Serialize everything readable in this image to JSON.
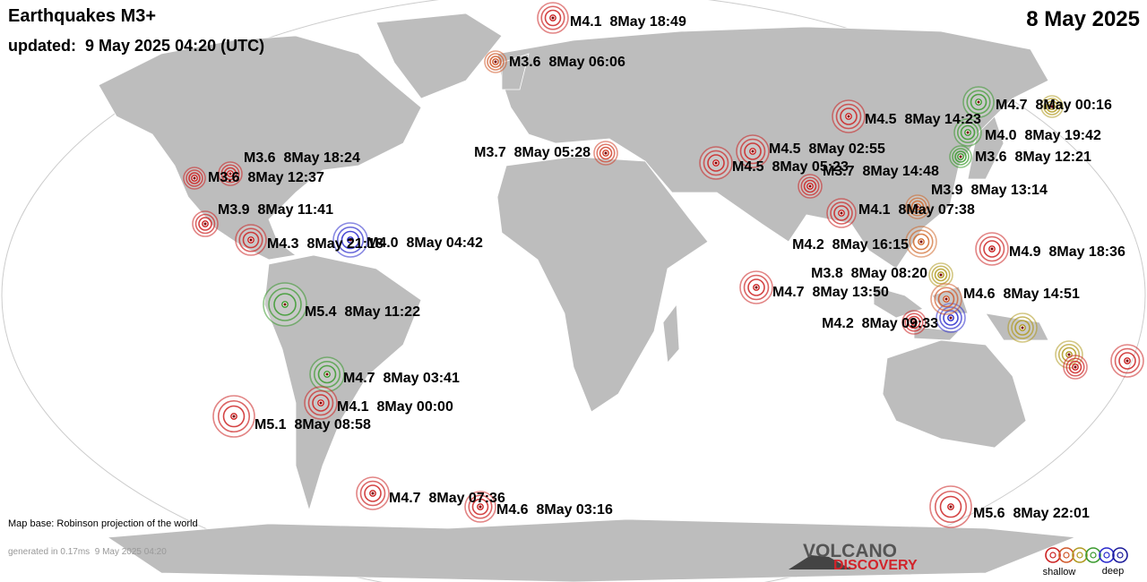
{
  "header": {
    "title": "Earthquakes M3+",
    "updated": "updated:  9 May 2025 04:20 (UTC)",
    "date": "8 May 2025"
  },
  "quakes": [
    {
      "label": "M4.1  8May 18:49",
      "color": "#cc2222"
    },
    {
      "label": "M3.6  8May 06:06",
      "color": "#d0582a"
    },
    {
      "label": "M4.7  8May 00:16",
      "color": "#3a9a2e"
    },
    {
      "label": "M4.5  8May 14:23",
      "color": "#cc2222"
    },
    {
      "label": "M4.0  8May 19:42",
      "color": "#3a9a2e"
    },
    {
      "label": "M4.5  8May 02:55",
      "color": "#cc2222"
    },
    {
      "label": "M3.7  8May 05:28",
      "color": "#d0402a"
    },
    {
      "label": "M3.6  8May 12:21",
      "color": "#3a9a2e"
    },
    {
      "label": "M4.5  8May 05:23",
      "color": "#cc2222"
    },
    {
      "label": "M3.7  8May 14:48",
      "color": "#cc2222"
    },
    {
      "label": "M3.6  8May 18:24",
      "color": "#cc2222"
    },
    {
      "label": "M3.6  8May 12:37",
      "color": "#cc2222"
    },
    {
      "label": "M3.9  8May 13:14",
      "color": "#d0682a"
    },
    {
      "label": "M4.1  8May 07:38",
      "color": "#cc2222"
    },
    {
      "label": "M3.9  8May 11:41",
      "color": "#cc2222"
    },
    {
      "label": "M4.3  8May 21:18",
      "color": "#cc2222"
    },
    {
      "label": "M4.0  8May 04:42",
      "color": "#2a2acc"
    },
    {
      "label": "M4.2  8May 16:15",
      "color": "#d0682a"
    },
    {
      "label": "M4.9  8May 18:36",
      "color": "#cc2222"
    },
    {
      "label": "M3.8  8May 08:20",
      "color": "#b09a20"
    },
    {
      "label": "M4.7  8May 13:50",
      "color": "#cc2222"
    },
    {
      "label": "M4.6  8May 14:51",
      "color": "#d0582a"
    },
    {
      "label": "M5.4  8May 11:22",
      "color": "#3a9a2e"
    },
    {
      "label": "M4.2  8May 09:33",
      "color": "#cc2222"
    },
    {
      "label": "M4.7  8May 03:41",
      "color": "#3a9a2e"
    },
    {
      "label": "M4.1  8May 00:00",
      "color": "#cc2222"
    },
    {
      "label": "M5.1  8May 08:58",
      "color": "#cc2222"
    },
    {
      "label": "M4.7  8May 07:36",
      "color": "#cc2222"
    },
    {
      "label": "M4.6  8May 03:16",
      "color": "#cc2222"
    },
    {
      "label": "M5.6  8May 22:01",
      "color": "#cc2222"
    }
  ],
  "map_base": "Map base: Robinson projection of the world",
  "generated": "generated in 0.17ms  9 May 2025 04:20",
  "logo": {
    "line1": "VOLCANO",
    "line2": "DISCOVERY"
  },
  "legend": {
    "shallow": "shallow",
    "deep": "deep"
  }
}
